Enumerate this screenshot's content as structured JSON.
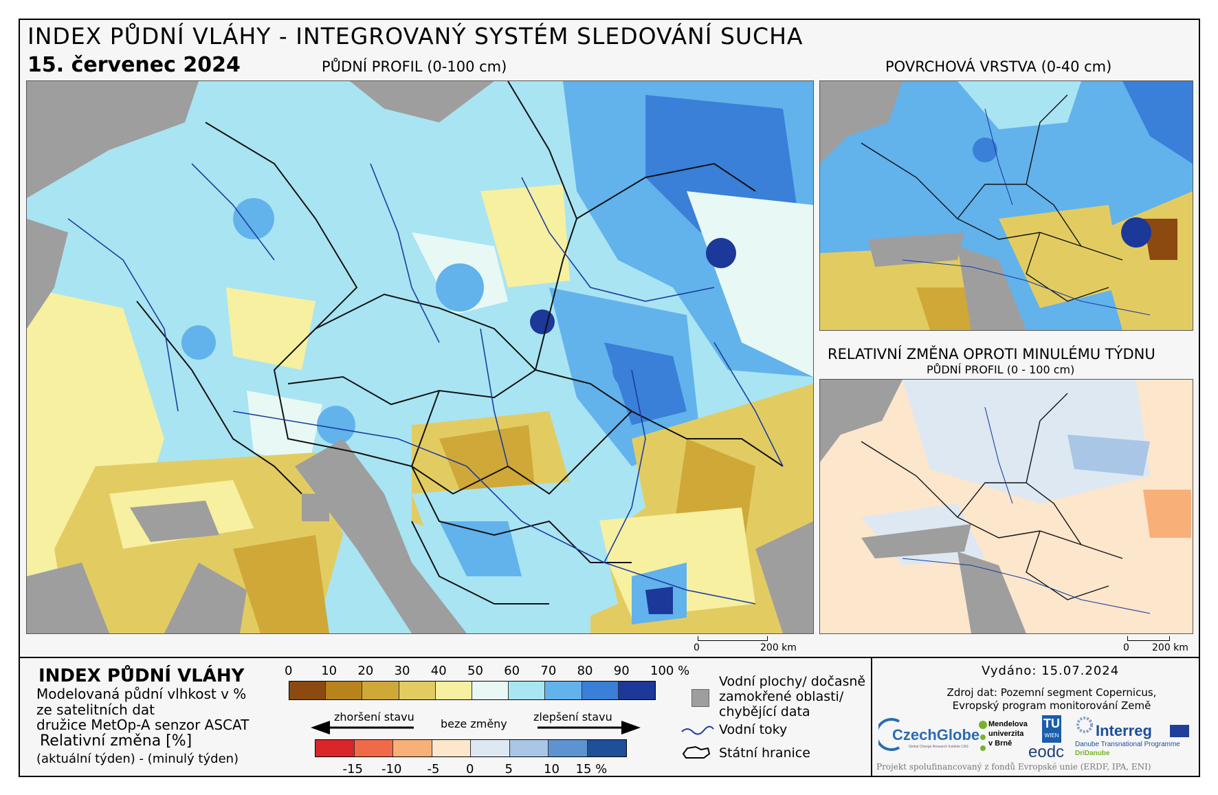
{
  "header": {
    "title": "INDEX PŮDNÍ VLÁHY - INTEGROVANÝ SYSTÉM SLEDOVÁNÍ SUCHA",
    "date": "15. červenec 2024"
  },
  "maps": {
    "main_caption": "PŮDNÍ PROFIL (0-100 cm)",
    "surface_caption": "POVRCHOVÁ VRSTVA (0-40 cm)",
    "change_caption": "RELATIVNÍ ZMĚNA OPROTI MINULÉMU TÝDNU",
    "change_subcaption": "PŮDNÍ PROFIL (0 - 100 cm)",
    "scale_zero": "0",
    "scale_label": "200 km"
  },
  "legend": {
    "title": "INDEX PŮDNÍ VLÁHY",
    "desc_line1": "Modelovaná půdní vlhkost v %",
    "desc_line2": "ze satelitních dat",
    "desc_line3": "družice MetOp-A senzor ASCAT",
    "rel_title": "Relativní změna [%]",
    "rel_sub": "(aktuální týden) - (minulý týden)",
    "index_ticks": [
      "0",
      "10",
      "20",
      "30",
      "40",
      "50",
      "60",
      "70",
      "80",
      "90",
      "100 %"
    ],
    "index_colors": [
      "#8c4a10",
      "#b8821c",
      "#cfa838",
      "#e2cc62",
      "#f6f0a0",
      "#e8f8f4",
      "#a8e6f2",
      "#62b2ec",
      "#3a7fd8",
      "#1c3898"
    ],
    "worse_label": "zhoršení stavu",
    "nochange_label": "beze změny",
    "better_label": "zlepšení stavu",
    "change_colors": [
      "#d8262b",
      "#f06a48",
      "#f8b078",
      "#fce6cc",
      "#dde8f2",
      "#a9c6e6",
      "#5e93d2",
      "#1f4f98"
    ],
    "change_ticks": [
      "-15",
      "-10",
      "-5",
      "0",
      "5",
      "10",
      "15 %"
    ],
    "water_label_1": "Vodní plochy/ dočasně",
    "water_label_2": "zamokřené oblasti/",
    "water_label_3": "chybějící data",
    "rivers_label": "Vodní toky",
    "borders_label": "Státní hranice"
  },
  "info": {
    "issued": "Vydáno: 15.07.2024",
    "source_line1": "Zdroj dat: Pozemní segment Copernicus,",
    "source_line2": "Evropský program monitorování Země",
    "logo_czechglobe": "CzechGlobe",
    "logo_czechglobe_sub": "Global Change Research Institute CAS",
    "logo_mendel_1": "Mendelova",
    "logo_mendel_2": "univerzita",
    "logo_mendel_3": "v Brně",
    "logo_tu": "TU",
    "logo_wien": "WIEN",
    "logo_eodc": "eodc",
    "logo_interreg": "Interreg",
    "logo_danube": "Danube Transnational Programme",
    "logo_dridanube": "DriDanube",
    "footnote": "Projekt spolufinancovaný z fondů Evropské unie (ERDF, IPA, ENI)"
  }
}
